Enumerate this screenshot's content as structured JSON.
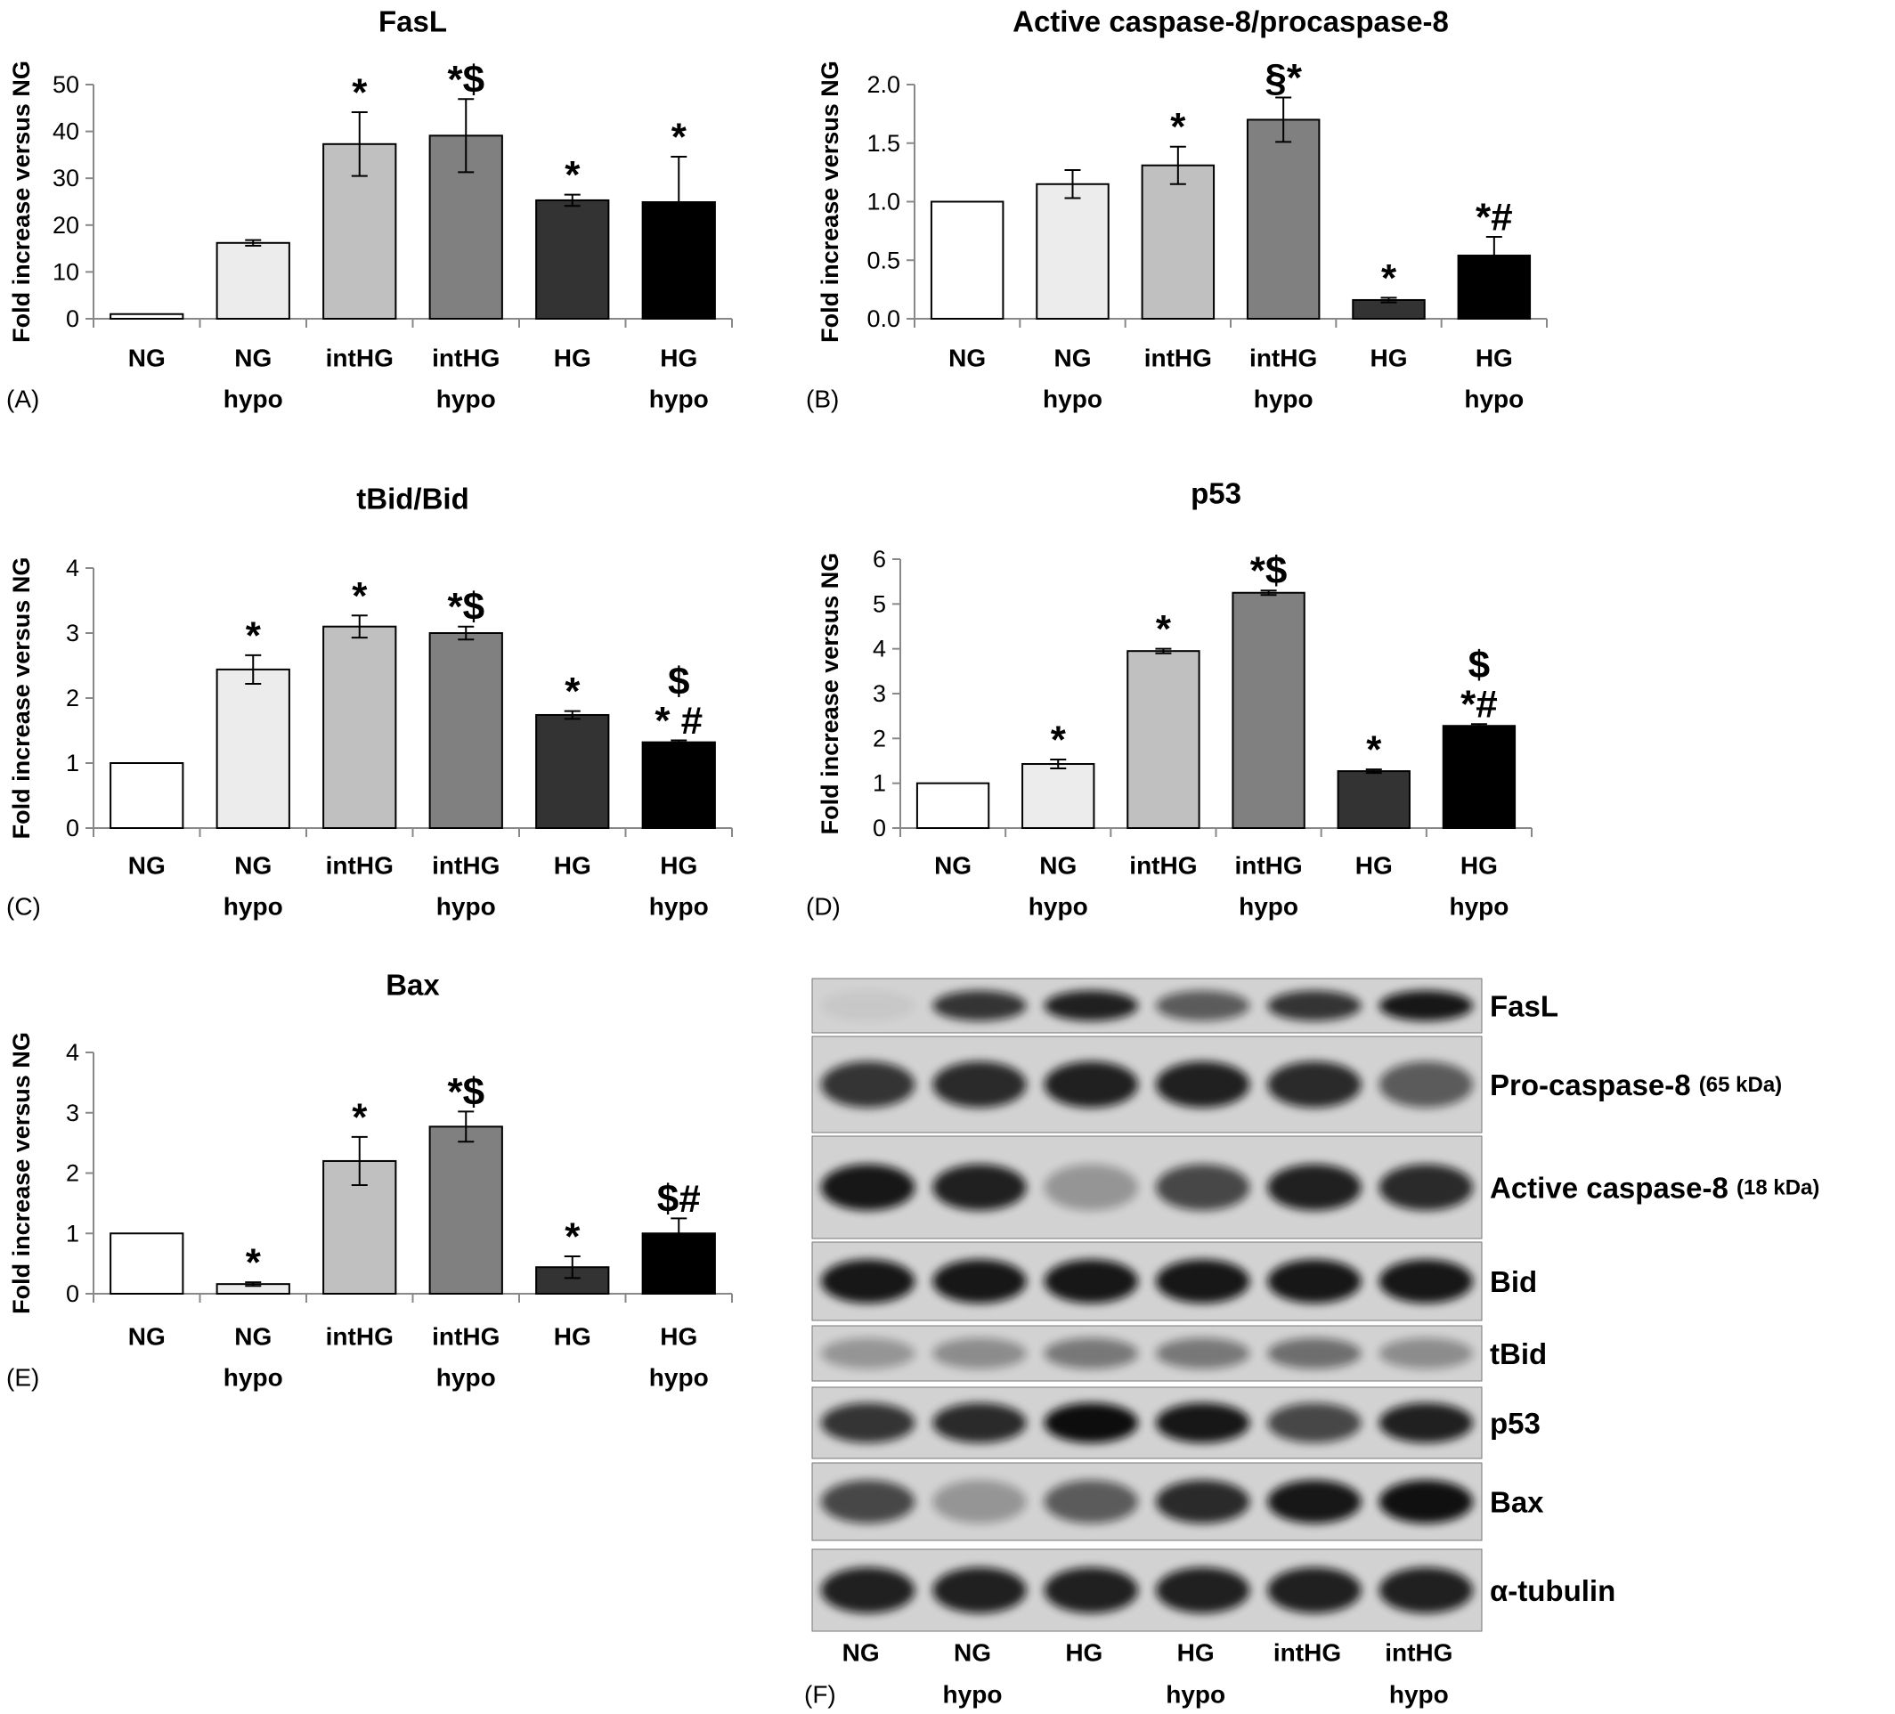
{
  "chart_data": [
    {
      "type": "bar",
      "title": "FasL",
      "panel_label": "(A)",
      "y_label": "Fold increase versus NG",
      "categories": [
        [
          "NG"
        ],
        [
          "NG",
          "hypo"
        ],
        [
          "intHG"
        ],
        [
          "intHG",
          "hypo"
        ],
        [
          "HG"
        ],
        [
          "HG",
          "hypo"
        ]
      ],
      "values": [
        1,
        16.2,
        37.3,
        39.1,
        25.3,
        24.9
      ],
      "errors": [
        null,
        0.6,
        6.8,
        7.8,
        1.2,
        9.7
      ],
      "annotations": [
        null,
        null,
        [
          "*"
        ],
        [
          "*$"
        ],
        [
          "*"
        ],
        [
          "*"
        ]
      ],
      "colors": [
        "#ffffff",
        "#ececec",
        "#c0c0c0",
        "#808080",
        "#333333",
        "#000000"
      ],
      "ylim": [
        0,
        50
      ],
      "yticks": [
        0,
        10,
        20,
        30,
        40,
        50
      ]
    },
    {
      "type": "bar",
      "title": "Active caspase-8/procaspase-8",
      "panel_label": "(B)",
      "y_label": "Fold increase versus NG",
      "categories": [
        [
          "NG"
        ],
        [
          "NG",
          "hypo"
        ],
        [
          "intHG"
        ],
        [
          "intHG",
          "hypo"
        ],
        [
          "HG"
        ],
        [
          "HG",
          "hypo"
        ]
      ],
      "values": [
        1.0,
        1.15,
        1.31,
        1.7,
        0.16,
        0.54
      ],
      "errors": [
        null,
        0.12,
        0.16,
        0.19,
        0.02,
        0.16
      ],
      "annotations": [
        null,
        null,
        [
          "*"
        ],
        [
          "§*"
        ],
        [
          "*"
        ],
        [
          "*#"
        ]
      ],
      "colors": [
        "#ffffff",
        "#ececec",
        "#c0c0c0",
        "#808080",
        "#333333",
        "#000000"
      ],
      "ylim": [
        0,
        2
      ],
      "yticks": [
        {
          "value": 0,
          "label": "0.0"
        },
        {
          "value": 0.5,
          "label": "0.5"
        },
        {
          "value": 1,
          "label": "1.0"
        },
        {
          "value": 1.5,
          "label": "1.5"
        },
        {
          "value": 2,
          "label": "2.0"
        }
      ]
    },
    {
      "type": "bar",
      "title": "tBid/Bid",
      "panel_label": "(C)",
      "y_label": "Fold increase versus NG",
      "categories": [
        [
          "NG"
        ],
        [
          "NG",
          "hypo"
        ],
        [
          "intHG"
        ],
        [
          "intHG",
          "hypo"
        ],
        [
          "HG"
        ],
        [
          "HG",
          "hypo"
        ]
      ],
      "values": [
        1,
        2.44,
        3.1,
        3.0,
        1.74,
        1.32
      ],
      "errors": [
        null,
        0.22,
        0.17,
        0.1,
        0.06,
        0.03
      ],
      "annotations": [
        null,
        [
          "*"
        ],
        [
          "*"
        ],
        [
          "*$"
        ],
        [
          "*"
        ],
        [
          "$",
          "* #"
        ]
      ],
      "colors": [
        "#ffffff",
        "#ececec",
        "#c0c0c0",
        "#808080",
        "#333333",
        "#000000"
      ],
      "ylim": [
        0,
        4
      ],
      "yticks": [
        0,
        1,
        2,
        3,
        4
      ]
    },
    {
      "type": "bar",
      "title": "p53",
      "panel_label": "(D)",
      "y_label": "Fold increase versus NG",
      "categories": [
        [
          "NG"
        ],
        [
          "NG",
          "hypo"
        ],
        [
          "intHG"
        ],
        [
          "intHG",
          "hypo"
        ],
        [
          "HG"
        ],
        [
          "HG",
          "hypo"
        ]
      ],
      "values": [
        1,
        1.43,
        3.95,
        5.25,
        1.27,
        2.28
      ],
      "errors": [
        null,
        0.1,
        0.05,
        0.05,
        0.04,
        0.04
      ],
      "annotations": [
        null,
        [
          "*"
        ],
        [
          "*"
        ],
        [
          "*$"
        ],
        [
          "*"
        ],
        [
          "$",
          "*#"
        ]
      ],
      "colors": [
        "#ffffff",
        "#ececec",
        "#c0c0c0",
        "#808080",
        "#333333",
        "#000000"
      ],
      "ylim": [
        0,
        6
      ],
      "yticks": [
        0,
        1,
        2,
        3,
        4,
        5,
        6
      ]
    },
    {
      "type": "bar",
      "title": "Bax",
      "panel_label": "(E)",
      "y_label": "Fold increase versus NG",
      "categories": [
        [
          "NG"
        ],
        [
          "NG",
          "hypo"
        ],
        [
          "intHG"
        ],
        [
          "intHG",
          "hypo"
        ],
        [
          "HG"
        ],
        [
          "HG",
          "hypo"
        ]
      ],
      "values": [
        1,
        0.16,
        2.2,
        2.77,
        0.44,
        1.0
      ],
      "errors": [
        null,
        0.03,
        0.4,
        0.25,
        0.18,
        0.25
      ],
      "annotations": [
        null,
        [
          "*"
        ],
        [
          "*"
        ],
        [
          "*$"
        ],
        [
          "*"
        ],
        [
          "$#"
        ]
      ],
      "colors": [
        "#ffffff",
        "#ececec",
        "#c0c0c0",
        "#808080",
        "#333333",
        "#000000"
      ],
      "ylim": [
        0,
        4
      ],
      "yticks": [
        0,
        1,
        2,
        3,
        4
      ]
    }
  ],
  "blot": {
    "panel_label": "(F)",
    "bands": [
      {
        "label": "FasL"
      },
      {
        "label": "Pro-caspase-8",
        "note": "(65 kDa)"
      },
      {
        "label": "Active caspase-8",
        "note": "(18 kDa)"
      },
      {
        "label": "Bid"
      },
      {
        "label": "tBid"
      },
      {
        "label": "p53"
      },
      {
        "label": "Bax"
      },
      {
        "label": "α-tubulin"
      }
    ],
    "lanes": [
      [
        "NG"
      ],
      [
        "NG",
        "hypo"
      ],
      [
        "HG"
      ],
      [
        "HG",
        "hypo"
      ],
      [
        "intHG"
      ],
      [
        "intHG",
        "hypo"
      ]
    ]
  }
}
